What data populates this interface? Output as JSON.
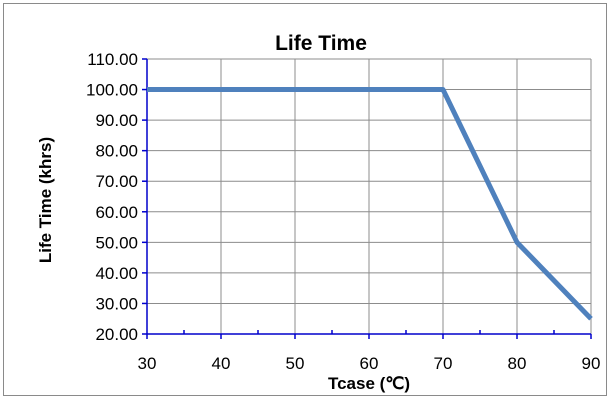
{
  "chart_data": {
    "type": "line",
    "title": "Life Time",
    "xlabel": "Tcase (℃)",
    "ylabel": "Life Time (khrs)",
    "xlim": [
      30,
      90
    ],
    "ylim": [
      20,
      110
    ],
    "x_ticks": [
      30,
      40,
      50,
      60,
      70,
      80,
      90
    ],
    "x_tick_labels": [
      "30",
      "40",
      "50",
      "60",
      "70",
      "80",
      "90"
    ],
    "y_ticks": [
      20,
      30,
      40,
      50,
      60,
      70,
      80,
      90,
      100,
      110
    ],
    "y_tick_labels": [
      "20.00",
      "30.00",
      "40.00",
      "50.00",
      "60.00",
      "70.00",
      "80.00",
      "90.00",
      "100.00",
      "110.00"
    ],
    "grid": true,
    "legend": "none",
    "series": [
      {
        "x": [
          30,
          70,
          80,
          90
        ],
        "values": [
          100,
          100,
          50,
          25
        ],
        "color": "#4f81bd"
      }
    ],
    "colors": {
      "grid": "#8c8c8c",
      "axis": "#0000cc"
    }
  }
}
